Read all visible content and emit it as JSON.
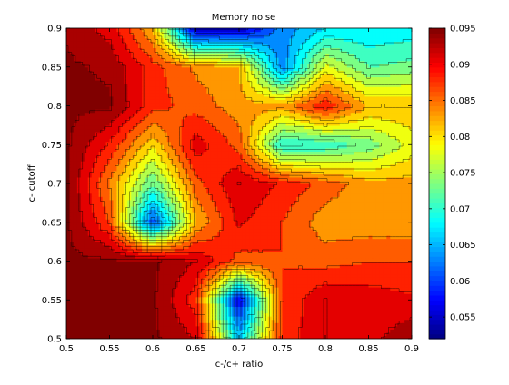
{
  "chart_data": {
    "type": "heatmap",
    "subtype": "filled-contour",
    "title": "Memory noise",
    "xlabel": "c-/c+ ratio",
    "ylabel": "c- cutoff",
    "x": [
      0.5,
      0.55,
      0.6,
      0.65,
      0.7,
      0.75,
      0.8,
      0.85,
      0.9
    ],
    "y": [
      0.5,
      0.55,
      0.6,
      0.65,
      0.7,
      0.75,
      0.8,
      0.85,
      0.9
    ],
    "z_rows_by_y": [
      [
        0.095,
        0.095,
        0.095,
        0.092,
        0.066,
        0.088,
        0.092,
        0.091,
        0.094
      ],
      [
        0.095,
        0.095,
        0.095,
        0.088,
        0.057,
        0.087,
        0.092,
        0.091,
        0.09
      ],
      [
        0.095,
        0.095,
        0.095,
        0.092,
        0.086,
        0.087,
        0.086,
        0.087,
        0.087
      ],
      [
        0.095,
        0.087,
        0.06,
        0.082,
        0.09,
        0.087,
        0.083,
        0.083,
        0.083
      ],
      [
        0.095,
        0.084,
        0.072,
        0.086,
        0.092,
        0.089,
        0.086,
        0.083,
        0.083
      ],
      [
        0.095,
        0.089,
        0.08,
        0.091,
        0.086,
        0.069,
        0.07,
        0.073,
        0.078
      ],
      [
        0.095,
        0.095,
        0.088,
        0.086,
        0.083,
        0.083,
        0.089,
        0.082,
        0.082
      ],
      [
        0.095,
        0.094,
        0.088,
        0.084,
        0.082,
        0.063,
        0.078,
        0.072,
        0.073
      ],
      [
        0.094,
        0.091,
        0.082,
        0.055,
        0.055,
        0.063,
        0.067,
        0.067,
        0.068
      ]
    ],
    "zlim": [
      0.052,
      0.095
    ],
    "contour_step": 0.0025,
    "colormap": "jet",
    "xlim": [
      0.5,
      0.9
    ],
    "ylim": [
      0.5,
      0.9
    ],
    "xticks": [
      "0.5",
      "0.55",
      "0.6",
      "0.65",
      "0.7",
      "0.75",
      "0.8",
      "0.85",
      "0.9"
    ],
    "yticks": [
      "0.5",
      "0.55",
      "0.6",
      "0.65",
      "0.7",
      "0.75",
      "0.8",
      "0.85",
      "0.9"
    ],
    "colorbar": {
      "ticks": [
        0.055,
        0.06,
        0.065,
        0.07,
        0.075,
        0.08,
        0.085,
        0.09,
        0.095
      ],
      "tick_labels": [
        "0.055",
        "0.06",
        "0.065",
        "0.07",
        "0.075",
        "0.08",
        "0.085",
        "0.09",
        "0.095"
      ]
    },
    "grid": false
  }
}
